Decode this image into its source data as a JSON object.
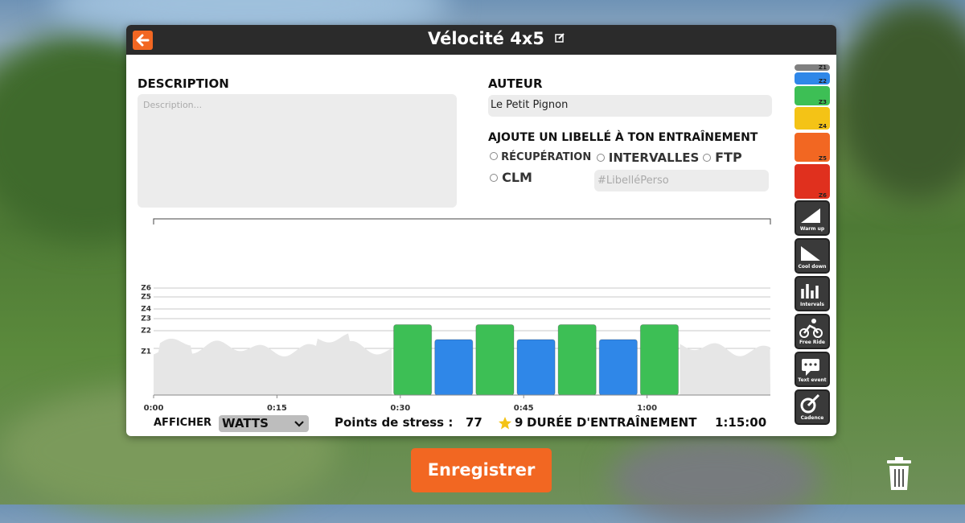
{
  "header": {
    "title": "Vélocité 4x5"
  },
  "description": {
    "label": "DESCRIPTION",
    "placeholder": "Description..."
  },
  "author": {
    "label": "AUTEUR",
    "value": "Le Petit Pignon"
  },
  "tags": {
    "label": "AJOUTE UN LIBELLÉ À TON ENTRAÎNEMENT",
    "options": [
      "RÉCUPÉRATION",
      "INTERVALLES",
      "FTP",
      "CLM"
    ],
    "custom_placeholder": "#LibelléPerso"
  },
  "zones": [
    {
      "label": "Z1",
      "color": "#808080"
    },
    {
      "label": "Z2",
      "color": "#2f87e8"
    },
    {
      "label": "Z3",
      "color": "#3dbf55"
    },
    {
      "label": "Z4",
      "color": "#f4c316"
    },
    {
      "label": "Z5",
      "color": "#f26722"
    },
    {
      "label": "Z6",
      "color": "#e0301e"
    }
  ],
  "tools": [
    "Warm up",
    "Cool down",
    "Intervals",
    "Free Ride",
    "Text event",
    "Cadence"
  ],
  "workout": {
    "xlim": [
      0,
      75
    ],
    "xticks": [
      {
        "value": 0,
        "label": "0:00"
      },
      {
        "value": 15,
        "label": "0:15"
      },
      {
        "value": 30,
        "label": "0:30"
      },
      {
        "value": 45,
        "label": "0:45"
      },
      {
        "value": 60,
        "label": "1:00"
      }
    ],
    "segments": [
      {
        "type": "free_ride",
        "start": 0,
        "duration": 29
      },
      {
        "type": "steady",
        "zone": "Z3",
        "start": 29,
        "duration": 5
      },
      {
        "type": "steady",
        "zone": "Z2",
        "start": 34,
        "duration": 5
      },
      {
        "type": "steady",
        "zone": "Z3",
        "start": 39,
        "duration": 5
      },
      {
        "type": "steady",
        "zone": "Z2",
        "start": 44,
        "duration": 5
      },
      {
        "type": "steady",
        "zone": "Z3",
        "start": 49,
        "duration": 5
      },
      {
        "type": "steady",
        "zone": "Z2",
        "start": 54,
        "duration": 5
      },
      {
        "type": "steady",
        "zone": "Z3",
        "start": 59,
        "duration": 5
      },
      {
        "type": "free_ride",
        "start": 64,
        "duration": 11
      }
    ]
  },
  "footer": {
    "display_label": "AFFICHER",
    "display_value": "WATTS",
    "stress_label": "Points de stress :",
    "stress_value": "77",
    "stars": "9",
    "duration_label": "DURÉE D'ENTRAÎNEMENT",
    "duration_value": "1:15:00"
  },
  "save_button": "Enregistrer"
}
